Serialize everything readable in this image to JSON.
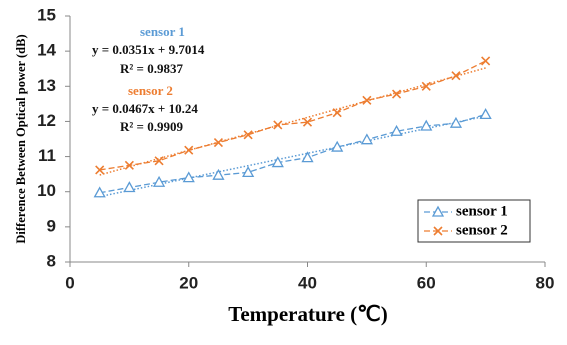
{
  "chart_data": {
    "type": "line",
    "x_label": "Temperature (℃)",
    "y_label": "Difference Between Optical power (dB)",
    "x": [
      5,
      10,
      15,
      20,
      25,
      30,
      35,
      40,
      45,
      50,
      55,
      60,
      65,
      70
    ],
    "series": [
      {
        "name": "sensor 1",
        "color": "#5b9bd5",
        "marker": "triangle",
        "values": [
          9.97,
          10.12,
          10.27,
          10.4,
          10.47,
          10.55,
          10.83,
          10.97,
          11.27,
          11.48,
          11.72,
          11.87,
          11.95,
          12.2
        ]
      },
      {
        "name": "sensor 2",
        "color": "#ed7d31",
        "marker": "x",
        "values": [
          10.62,
          10.75,
          10.88,
          11.18,
          11.4,
          11.62,
          11.9,
          11.98,
          12.25,
          12.6,
          12.78,
          13.0,
          13.3,
          13.72
        ]
      }
    ],
    "annotations": [
      "sensor 1",
      "y = 0.0351x + 9.7014",
      "R² = 0.9837",
      "sensor 2",
      "y = 0.0467x + 10.24",
      "R² = 0.9909"
    ],
    "xlim": [
      0,
      80
    ],
    "xticks": [
      0,
      20,
      40,
      60,
      80
    ],
    "ylim": [
      8,
      15
    ],
    "yticks": [
      8,
      9,
      10,
      11,
      12,
      13,
      14,
      15
    ],
    "trendline": true,
    "legend": "lower-right"
  }
}
